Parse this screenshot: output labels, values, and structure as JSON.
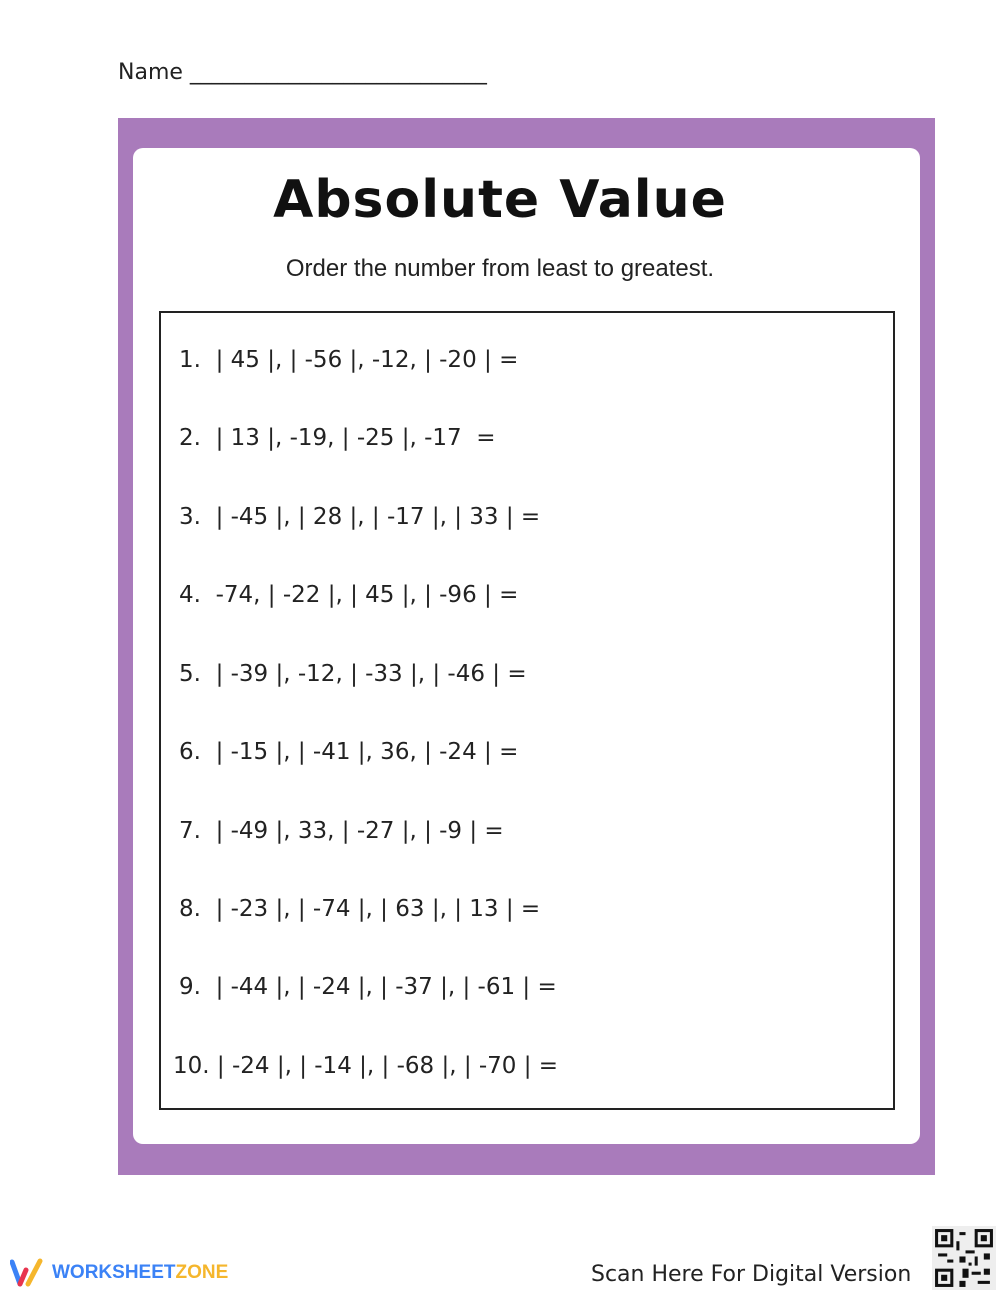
{
  "header": {
    "name_label": "Name ___________________________"
  },
  "worksheet": {
    "title": "Absolute Value",
    "instructions": "Order the number from least to greatest.",
    "problems": [
      "1.  | 45 |, | -56 |, -12, | -20 | =",
      "2.  | 13 |, -19, | -25 |, -17  =",
      "3.  | -45 |, | 28 |, | -17 |, | 33 | =",
      "4.  -74, | -22 |, | 45 |, | -96 | =",
      "5.  | -39 |, -12, | -33 |, | -46 | =",
      "6.  | -15 |, | -41 |, 36, | -24 | =",
      "7.  | -49 |, 33, | -27 |, | -9 | =",
      "8.  | -23 |, | -74 |, | 63 |, | 13 | =",
      "9.  | -44 |, | -24 |, | -37 |, | -61 | =",
      "10. | -24 |, | -14 |, | -68 |, | -70 | ="
    ]
  },
  "footer": {
    "brand_part1": "WORKSHEET",
    "brand_part2": "ZONE",
    "scan_text": "Scan Here For Digital Version",
    "frame_color": "#a97bbb"
  }
}
